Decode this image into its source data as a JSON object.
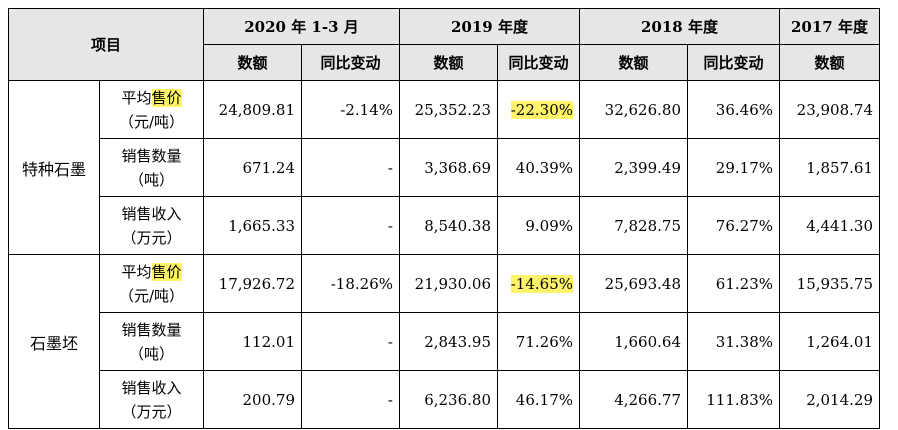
{
  "header": {
    "item_label": "项目",
    "periods": [
      "2020 年 1-3 月",
      "2019 年度",
      "2018 年度",
      "2017 年度"
    ],
    "col_amount": "数额",
    "col_change": "同比变动"
  },
  "highlight_color": "#fff36b",
  "groups": [
    {
      "category": "特种石墨",
      "rows": [
        {
          "item_line1_pre": "平均",
          "item_line1_hl": "售价",
          "item_line2": "（元/吨）",
          "v2020": "24,809.81",
          "c2020": "-2.14%",
          "v2019": "25,352.23",
          "c2019": "-22.30%",
          "v2018": "32,626.80",
          "c2018": "36.46%",
          "v2017": "23,908.74",
          "c2019_highlight": true
        },
        {
          "item_line1_pre": "销售数量",
          "item_line1_hl": "",
          "item_line2": "（吨）",
          "v2020": "671.24",
          "c2020": "-",
          "v2019": "3,368.69",
          "c2019": "40.39%",
          "v2018": "2,399.49",
          "c2018": "29.17%",
          "v2017": "1,857.61",
          "c2019_highlight": false
        },
        {
          "item_line1_pre": "销售收入",
          "item_line1_hl": "",
          "item_line2": "（万元）",
          "v2020": "1,665.33",
          "c2020": "-",
          "v2019": "8,540.38",
          "c2019": "9.09%",
          "v2018": "7,828.75",
          "c2018": "76.27%",
          "v2017": "4,441.30",
          "c2019_highlight": false
        }
      ]
    },
    {
      "category": "石墨坯",
      "rows": [
        {
          "item_line1_pre": "平均",
          "item_line1_hl": "售价",
          "item_line2": "（元/吨）",
          "v2020": "17,926.72",
          "c2020": "-18.26%",
          "v2019": "21,930.06",
          "c2019": "-14.65%",
          "v2018": "25,693.48",
          "c2018": "61.23%",
          "v2017": "15,935.75",
          "c2019_highlight": true
        },
        {
          "item_line1_pre": "销售数量",
          "item_line1_hl": "",
          "item_line2": "（吨）",
          "v2020": "112.01",
          "c2020": "-",
          "v2019": "2,843.95",
          "c2019": "71.26%",
          "v2018": "1,660.64",
          "c2018": "31.38%",
          "v2017": "1,264.01",
          "c2019_highlight": false
        },
        {
          "item_line1_pre": "销售收入",
          "item_line1_hl": "",
          "item_line2": "（万元）",
          "v2020": "200.79",
          "c2020": "-",
          "v2019": "6,236.80",
          "c2019": "46.17%",
          "v2018": "4,266.77",
          "c2018": "111.83%",
          "v2017": "2,014.29",
          "c2019_highlight": false
        }
      ]
    }
  ]
}
